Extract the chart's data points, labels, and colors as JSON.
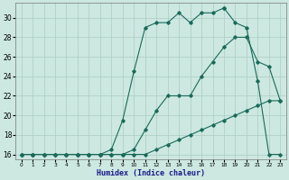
{
  "title": "",
  "xlabel": "Humidex (Indice chaleur)",
  "bg_color": "#cce8e0",
  "grid_color": "#aaccc4",
  "line_color": "#1a6a5a",
  "xlim": [
    -0.5,
    23.5
  ],
  "ylim": [
    15.5,
    31.5
  ],
  "xticks": [
    0,
    1,
    2,
    3,
    4,
    5,
    6,
    7,
    8,
    9,
    10,
    11,
    12,
    13,
    14,
    15,
    16,
    17,
    18,
    19,
    20,
    21,
    22,
    23
  ],
  "yticks": [
    16,
    18,
    20,
    22,
    24,
    26,
    28,
    30
  ],
  "line1_x": [
    0,
    1,
    2,
    3,
    4,
    5,
    6,
    7,
    8,
    9,
    10,
    11,
    12,
    13,
    14,
    15,
    16,
    17,
    18
  ],
  "line1_y": [
    16,
    16,
    16,
    16,
    16,
    16,
    16,
    16,
    16.5,
    19.5,
    24.5,
    29,
    29.5,
    29.5,
    30.5,
    29.5,
    30.5,
    30.5,
    31
  ],
  "line2_x": [
    0,
    1,
    2,
    3,
    4,
    5,
    6,
    7,
    8,
    9,
    10,
    11,
    12,
    13,
    14,
    15,
    16,
    17,
    18,
    19,
    20,
    21,
    22,
    23
  ],
  "line2_y": [
    16,
    16,
    16,
    16,
    16,
    16,
    16,
    16,
    16,
    16,
    16.5,
    18.5,
    20.5,
    22,
    22,
    22,
    24,
    25.5,
    27,
    28,
    28,
    25.5,
    25,
    21.5
  ],
  "line3_x": [
    18,
    19,
    20,
    21,
    22,
    23
  ],
  "line3_y": [
    31,
    29.5,
    29,
    23.5,
    16,
    16
  ],
  "line4_x": [
    0,
    1,
    2,
    3,
    4,
    5,
    6,
    7,
    8,
    9,
    10,
    11,
    12,
    13,
    14,
    15,
    16,
    17,
    18,
    19,
    20,
    21,
    22,
    23
  ],
  "line4_y": [
    16,
    16,
    16,
    16,
    16,
    16,
    16,
    16,
    16,
    16,
    16,
    16,
    16.5,
    17,
    17.5,
    18,
    18.5,
    19,
    19.5,
    20,
    20.5,
    21,
    21.5,
    21.5
  ]
}
